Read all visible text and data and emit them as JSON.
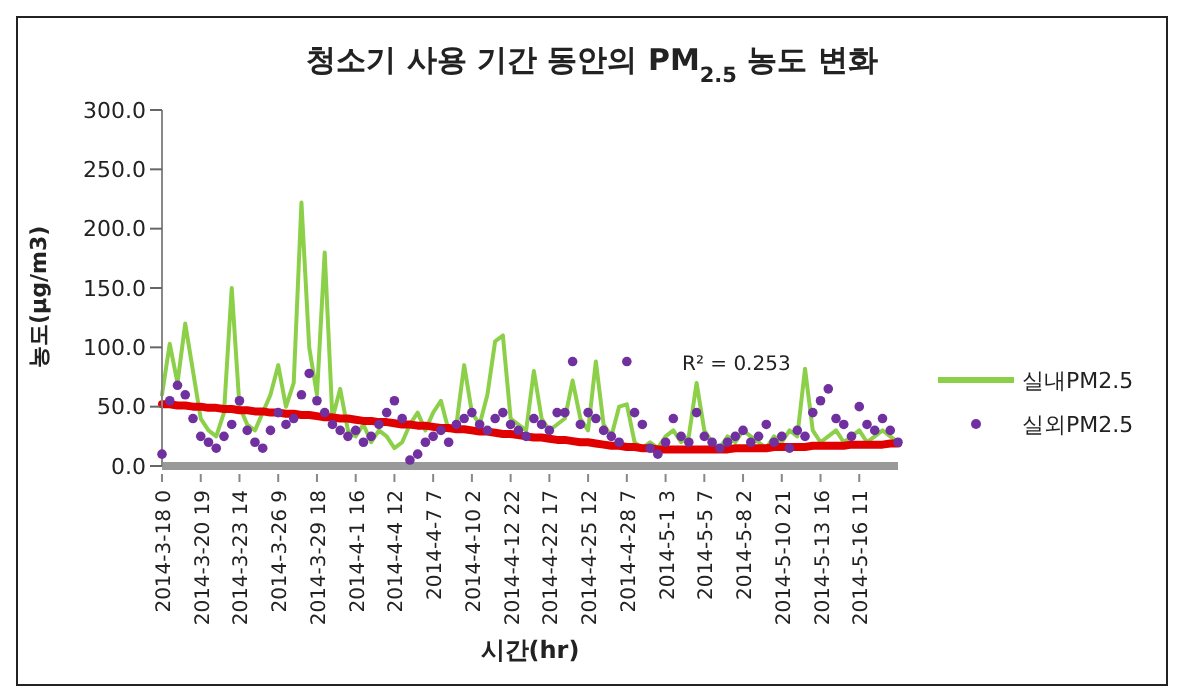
{
  "chart_data": {
    "type": "line",
    "title": "청소기 사용 기간 동안의 PM$_{2.5}$ 농도 변화",
    "xlabel": "시간(hr)",
    "ylabel": "농도(μg/m3)",
    "categories": [
      "2014-3-18 0",
      null,
      null,
      null,
      null,
      "2014-3-20 19",
      null,
      null,
      null,
      null,
      "2014-3-23 14",
      null,
      null,
      null,
      null,
      "2014-3-26 9",
      null,
      null,
      null,
      null,
      "2014-3-29 18",
      null,
      null,
      null,
      null,
      "2014-4-1 16",
      null,
      null,
      null,
      null,
      "2014-4-4 12",
      null,
      null,
      null,
      null,
      "2014-4-7 7",
      null,
      null,
      null,
      null,
      "2014-4-10 2",
      null,
      null,
      null,
      null,
      "2014-4-12 22",
      null,
      null,
      null,
      null,
      "2014-4-22 17",
      null,
      null,
      null,
      null,
      "2014-4-25 12",
      null,
      null,
      null,
      null,
      "2014-4-28 7",
      null,
      null,
      null,
      null,
      "2014-5-1 3",
      null,
      null,
      null,
      null,
      "2014-5-5 7",
      null,
      null,
      null,
      null,
      "2014-5-8 2",
      null,
      null,
      null,
      null,
      "2014-5-10 21",
      null,
      null,
      null,
      null,
      "2014-5-13 16",
      null,
      null,
      null,
      null,
      "2014-5-16 11",
      null,
      null,
      null,
      null,
      null
    ],
    "series": [
      {
        "name": "실내PM2.5",
        "marker": "none",
        "color": "#8cd04a",
        "values": [
          60,
          103,
          70,
          120,
          80,
          40,
          30,
          25,
          45,
          150,
          50,
          35,
          30,
          45,
          60,
          85,
          50,
          70,
          222,
          100,
          60,
          180,
          40,
          65,
          30,
          25,
          35,
          20,
          30,
          25,
          15,
          20,
          35,
          45,
          30,
          45,
          55,
          30,
          35,
          85,
          45,
          35,
          60,
          105,
          110,
          40,
          35,
          30,
          80,
          40,
          30,
          35,
          40,
          72,
          40,
          30,
          88,
          35,
          25,
          50,
          52,
          20,
          15,
          20,
          15,
          25,
          30,
          20,
          25,
          70,
          30,
          20,
          15,
          25,
          20,
          30,
          25,
          20,
          15,
          25,
          20,
          30,
          25,
          82,
          30,
          20,
          25,
          30,
          20,
          25,
          30,
          20,
          25,
          30,
          25,
          20
        ]
      },
      {
        "name": "실외PM2.5",
        "type": "scatter",
        "marker": "circle",
        "color": "#7030a0",
        "values": [
          10,
          55,
          68,
          60,
          40,
          25,
          20,
          15,
          25,
          35,
          55,
          30,
          20,
          15,
          30,
          45,
          35,
          40,
          60,
          78,
          55,
          45,
          35,
          30,
          25,
          30,
          20,
          25,
          35,
          45,
          55,
          40,
          5,
          10,
          20,
          25,
          30,
          20,
          35,
          40,
          45,
          35,
          30,
          40,
          45,
          35,
          30,
          25,
          40,
          35,
          30,
          45,
          45,
          88,
          35,
          45,
          40,
          30,
          25,
          20,
          88,
          45,
          35,
          15,
          10,
          20,
          40,
          25,
          20,
          45,
          25,
          20,
          15,
          20,
          25,
          30,
          20,
          25,
          35,
          20,
          25,
          15,
          30,
          25,
          45,
          55,
          65,
          40,
          35,
          25,
          50,
          35,
          30,
          40,
          30,
          20
        ]
      },
      {
        "type": "line",
        "marker": "none",
        "color": "#e00000",
        "values": [
          52,
          52,
          51,
          51,
          50,
          50,
          49,
          49,
          48,
          48,
          47,
          47,
          46,
          46,
          45,
          45,
          44,
          44,
          43,
          43,
          42,
          41,
          41,
          40,
          40,
          39,
          38,
          38,
          37,
          37,
          36,
          35,
          35,
          34,
          34,
          33,
          32,
          32,
          31,
          31,
          30,
          29,
          29,
          28,
          27,
          27,
          26,
          25,
          24,
          24,
          23,
          22,
          22,
          21,
          20,
          20,
          19,
          18,
          17,
          17,
          16,
          16,
          15,
          15,
          14,
          14,
          14,
          14,
          14,
          14,
          14,
          14,
          14,
          14,
          15,
          15,
          15,
          15,
          15,
          16,
          16,
          16,
          16,
          16,
          17,
          17,
          17,
          17,
          17,
          18,
          18,
          18,
          18,
          18,
          19,
          19
        ]
      }
    ],
    "ylim": [
      0,
      300
    ],
    "yticks": [
      {
        "value": 0,
        "label": "0.0"
      },
      {
        "value": 50,
        "label": "50.0"
      },
      {
        "value": 100,
        "label": "100.0"
      },
      {
        "value": 150,
        "label": "150.0"
      },
      {
        "value": 200,
        "label": "200.0"
      },
      {
        "value": 250,
        "label": "250.0"
      },
      {
        "value": 300,
        "label": "300.0"
      }
    ],
    "grid": false,
    "legend": "right",
    "annotations": [
      "R² = 0.253"
    ]
  }
}
